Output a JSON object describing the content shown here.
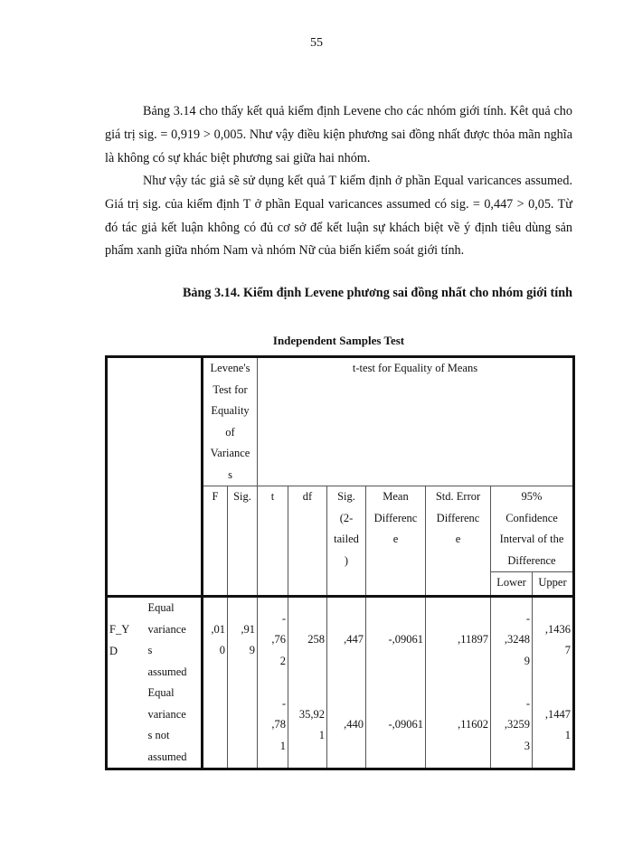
{
  "page_number": "55",
  "paragraphs": [
    "Bảng 3.14 cho thấy kết quả kiểm định Levene cho các nhóm giới tính. Kêt quả cho giá trị sig. = 0,919 > 0,005. Như vậy điều kiện phương sai đồng nhất được thỏa mãn nghĩa là không có sự khác biệt phương sai giữa hai nhóm.",
    "Như vậy tác giả sẽ sử dụng kết quả T kiểm định ở phần Equal varicances assumed. Giá trị sig. của kiểm định T ở phần Equal varicances assumed có sig. = 0,447 > 0,05. Từ đó tác giả kết luận không có đủ cơ sở để kết luận sự khách biệt về ý định tiêu dùng sản phẩm xanh giữa nhóm Nam và nhóm Nữ của biến kiểm soát giới tính."
  ],
  "caption": "Bảng 3.14. Kiểm định Levene phương sai đồng nhất cho nhóm giới tính",
  "table": {
    "title": "Independent Samples Test",
    "group_levene": "Levene's\nTest for\nEquality\nof\nVariance\ns",
    "group_ttest": "t-test for Equality  of Means",
    "headers": [
      "F",
      "Sig.",
      "t",
      "df",
      "Sig.\n(2-\ntailed\n)",
      "Mean\nDifferenc\ne",
      "Std. Error\nDifferenc\ne"
    ],
    "ci_header": "95%\nConfidence\nInterval  of the\nDifference",
    "ci_lower": "Lower",
    "ci_upper": "Upper",
    "variable": "F_Y\nD",
    "rows": [
      {
        "label": "Equal\nvariance\ns\nassumed",
        "values": [
          ",01\n0",
          ",91\n9",
          "-\n,76\n2",
          "258",
          ",447",
          "-,09061",
          ",11897",
          "-\n,3248\n9",
          ",1436\n7"
        ]
      },
      {
        "label": "Equal\nvariance\ns not\nassumed",
        "values": [
          "",
          "",
          "-\n,78\n1",
          "35,92\n1",
          ",440",
          "-,09061",
          ",11602",
          "-\n,3259\n3",
          ",1447\n1"
        ]
      }
    ]
  }
}
